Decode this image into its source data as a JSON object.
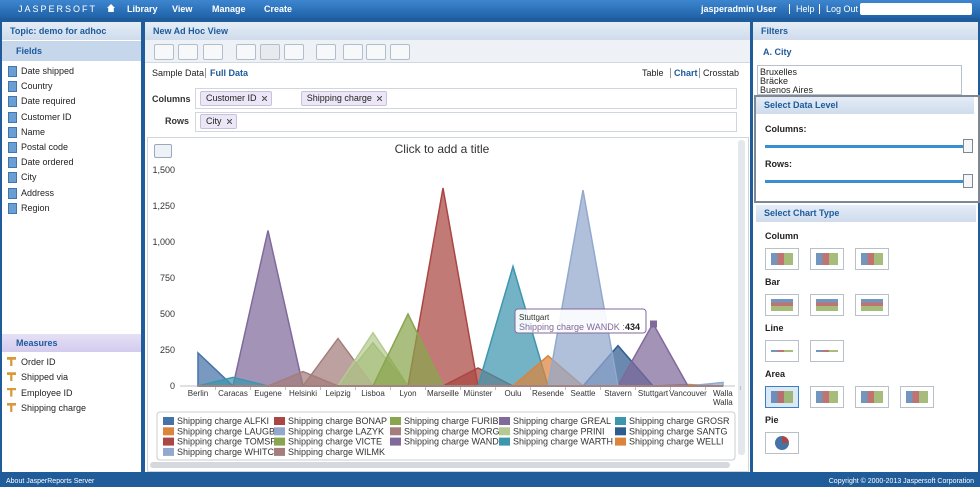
{
  "header": {
    "logo": "JASPERSOFT",
    "menu": [
      "Library",
      "View",
      "Manage",
      "Create"
    ],
    "user": "jasperadmin User",
    "links": [
      "Help",
      "Log Out"
    ]
  },
  "left": {
    "topic": "Topic: demo for adhoc",
    "fields_title": "Fields",
    "fields": [
      "Date shipped",
      "Country",
      "Date required",
      "Customer ID",
      "Name",
      "Postal code",
      "Date ordered",
      "City",
      "Address",
      "Region"
    ],
    "measures_title": "Measures",
    "measures": [
      "Order ID",
      "Shipped via",
      "Employee ID",
      "Shipping charge"
    ]
  },
  "view": {
    "title": "New Ad Hoc View",
    "sample": "Sample Data",
    "full": "Full Data",
    "modes": [
      "Table",
      "Chart",
      "Crosstab"
    ],
    "columns_label": "Columns",
    "columns": [
      "Customer ID",
      "Shipping charge"
    ],
    "rows_label": "Rows",
    "rows": [
      "City"
    ],
    "chart_title": "Click to add a title"
  },
  "chart_data": {
    "type": "area",
    "categories": [
      "Berlin",
      "Caracas",
      "Eugene",
      "Helsinki",
      "Leipzig",
      "Lisboa",
      "Lyon",
      "Marseille",
      "Münster",
      "Oulu",
      "Resende",
      "Seattle",
      "Stavern",
      "Stuttgart",
      "Vancouver",
      "Walla Walla"
    ],
    "ylim": [
      0,
      1500
    ],
    "yticks": [
      0,
      250,
      500,
      750,
      {
        "value": 1000,
        "label": "1,000"
      },
      {
        "value": 1250,
        "label": "1,250"
      },
      {
        "value": 1500,
        "label": "1,500"
      }
    ],
    "series": [
      {
        "name": "Shipping charge ALFKI",
        "color": "#4572a7",
        "values": [
          230,
          0,
          0,
          0,
          0,
          0,
          0,
          0,
          0,
          0,
          0,
          0,
          0,
          0,
          0,
          0
        ]
      },
      {
        "name": "Shipping charge BONAP",
        "color": "#aa4643",
        "values": [
          0,
          0,
          0,
          0,
          0,
          0,
          0,
          1375,
          0,
          0,
          0,
          0,
          0,
          0,
          0,
          0
        ]
      },
      {
        "name": "Shipping charge FURIB",
        "color": "#89a54e",
        "values": [
          0,
          0,
          0,
          0,
          0,
          300,
          0,
          0,
          0,
          0,
          0,
          0,
          0,
          0,
          0,
          0
        ]
      },
      {
        "name": "Shipping charge GREAL",
        "color": "#80699b",
        "values": [
          0,
          0,
          1080,
          0,
          0,
          0,
          0,
          0,
          0,
          0,
          0,
          0,
          0,
          0,
          0,
          0
        ]
      },
      {
        "name": "Shipping charge GROSR",
        "color": "#3d96ae",
        "values": [
          0,
          60,
          0,
          0,
          0,
          0,
          0,
          0,
          0,
          0,
          0,
          0,
          0,
          0,
          0,
          0
        ]
      },
      {
        "name": "Shipping charge LAUGB",
        "color": "#db843d",
        "values": [
          0,
          0,
          0,
          0,
          0,
          0,
          0,
          0,
          0,
          0,
          0,
          0,
          0,
          0,
          10,
          0
        ]
      },
      {
        "name": "Shipping charge LAZYK",
        "color": "#92a8cd",
        "values": [
          0,
          0,
          0,
          0,
          0,
          0,
          0,
          0,
          0,
          0,
          0,
          0,
          0,
          0,
          0,
          25
        ]
      },
      {
        "name": "Shipping charge MORGK",
        "color": "#a47d7c",
        "values": [
          0,
          0,
          0,
          0,
          330,
          0,
          0,
          0,
          0,
          0,
          0,
          0,
          0,
          0,
          0,
          0
        ]
      },
      {
        "name": "Shipping charge PRINI",
        "color": "#b5ca92",
        "values": [
          0,
          0,
          0,
          0,
          0,
          370,
          0,
          0,
          0,
          0,
          0,
          0,
          0,
          0,
          0,
          0
        ]
      },
      {
        "name": "Shipping charge SANTG",
        "color": "#2f5c8f",
        "values": [
          0,
          0,
          0,
          0,
          0,
          0,
          0,
          0,
          0,
          0,
          0,
          0,
          280,
          0,
          0,
          0
        ]
      },
      {
        "name": "Shipping charge TOMSP",
        "color": "#aa4643",
        "values": [
          0,
          0,
          0,
          0,
          0,
          0,
          0,
          0,
          125,
          0,
          0,
          0,
          0,
          0,
          0,
          0
        ]
      },
      {
        "name": "Shipping charge VICTE",
        "color": "#89a54e",
        "values": [
          0,
          0,
          0,
          0,
          0,
          0,
          500,
          0,
          0,
          0,
          0,
          0,
          0,
          0,
          0,
          0
        ]
      },
      {
        "name": "Shipping charge WANDK",
        "color": "#80699b",
        "values": [
          0,
          0,
          0,
          0,
          0,
          0,
          0,
          0,
          0,
          0,
          0,
          0,
          0,
          434,
          0,
          0
        ]
      },
      {
        "name": "Shipping charge WARTH",
        "color": "#3d96ae",
        "values": [
          0,
          0,
          0,
          0,
          0,
          0,
          0,
          0,
          0,
          830,
          0,
          0,
          0,
          0,
          0,
          0
        ]
      },
      {
        "name": "Shipping charge WELLI",
        "color": "#db843d",
        "values": [
          0,
          0,
          0,
          0,
          0,
          0,
          0,
          0,
          0,
          0,
          210,
          0,
          0,
          0,
          0,
          0
        ]
      },
      {
        "name": "Shipping charge WHITC",
        "color": "#92a8cd",
        "values": [
          0,
          0,
          0,
          0,
          0,
          0,
          0,
          0,
          0,
          0,
          0,
          1360,
          0,
          0,
          0,
          0
        ]
      },
      {
        "name": "Shipping charge WILMK",
        "color": "#a47d7c",
        "values": [
          0,
          0,
          0,
          100,
          0,
          0,
          0,
          0,
          0,
          0,
          0,
          0,
          0,
          0,
          0,
          0
        ]
      }
    ]
  },
  "tooltip": {
    "category": "Stuttgart",
    "label": "Shipping charge WANDK :",
    "value": 434
  },
  "right": {
    "filters": "Filters",
    "filter_name": "A. City",
    "filter_values": [
      "Bruxelles",
      "Bräcke",
      "Buenos Aires"
    ],
    "level_title": "Select Data Level",
    "level_columns": "Columns:",
    "level_rows": "Rows:",
    "type_title": "Select Chart Type",
    "groups": [
      "Column",
      "Bar",
      "Line",
      "Area",
      "Pie"
    ]
  },
  "footer": {
    "left": "About JasperReports Server",
    "right": "Copyright © 2000-2013 Jaspersoft Corporation"
  }
}
